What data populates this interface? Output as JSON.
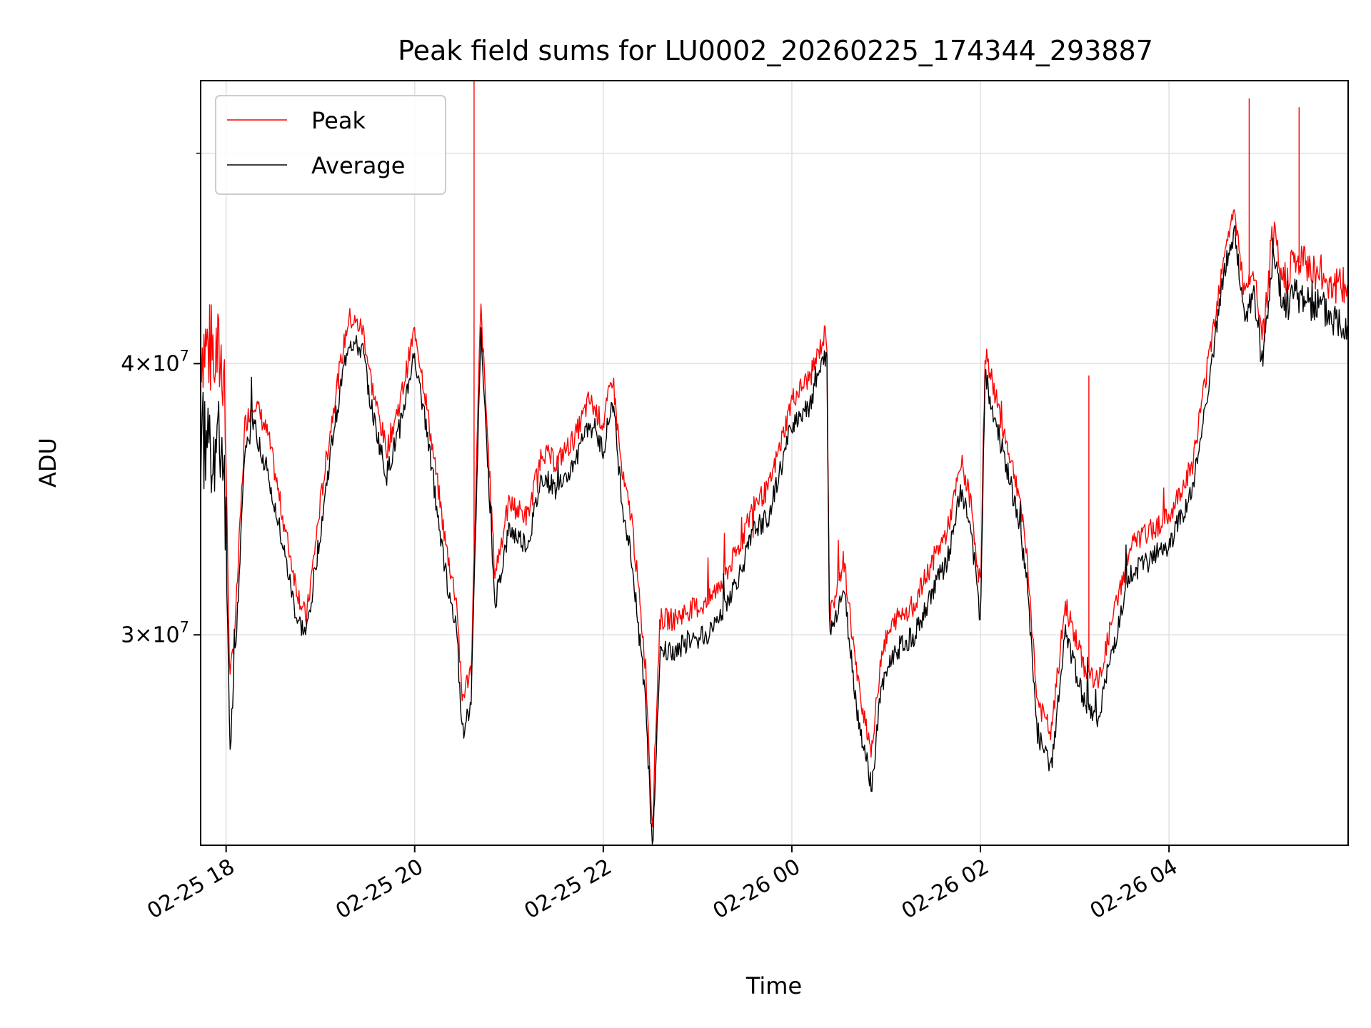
{
  "chart_data": {
    "type": "line",
    "title": "Peak field sums for LU0002_20260225_174344_293887",
    "xlabel": "Time",
    "ylabel": "ADU",
    "x_tick_labels": [
      "02-25 18",
      "02-25 20",
      "02-25 22",
      "02-26 00",
      "02-26 02",
      "02-26 04"
    ],
    "x_tick_hours": [
      18,
      20,
      22,
      24,
      26,
      28
    ],
    "xlim_hours": [
      17.73,
      29.9
    ],
    "y_scale": "log",
    "ylim": [
      24000000,
      54000000
    ],
    "y_ticks": [
      {
        "value": 30000000,
        "mantissa": "3",
        "exponent": "7"
      },
      {
        "value": 40000000,
        "mantissa": "4",
        "exponent": "7"
      }
    ],
    "y_minor_ticks": [
      50000000
    ],
    "grid": true,
    "legend_position": "upper-left",
    "series": [
      {
        "name": "Peak",
        "color": "#ff0000",
        "x_hours": [
          17.73,
          17.98,
          18.04,
          18.1,
          18.2,
          18.3,
          18.45,
          18.6,
          18.75,
          18.85,
          19.0,
          19.15,
          19.3,
          19.45,
          19.55,
          19.7,
          19.85,
          20.0,
          20.1,
          20.25,
          20.33,
          20.45,
          20.5,
          20.6,
          20.7,
          20.85,
          21.0,
          21.2,
          21.35,
          21.5,
          21.7,
          21.85,
          22.0,
          22.1,
          22.2,
          22.3,
          22.45,
          22.52,
          22.6,
          22.75,
          22.9,
          23.1,
          23.3,
          23.45,
          23.6,
          23.75,
          23.9,
          24.0,
          24.2,
          24.37,
          24.4,
          24.55,
          24.7,
          24.85,
          24.95,
          25.1,
          25.3,
          25.5,
          25.65,
          25.8,
          25.9,
          26.0,
          26.05,
          26.2,
          26.4,
          26.5,
          26.6,
          26.75,
          26.9,
          27.1,
          27.25,
          27.4,
          27.6,
          27.8,
          28.0,
          28.25,
          28.45,
          28.6,
          28.7,
          28.8,
          28.9,
          29.0,
          29.1,
          29.2,
          29.3,
          29.45,
          29.6,
          29.75,
          29.9
        ],
        "values": [
          41000000,
          40000000,
          28500000,
          30500000,
          37500000,
          38500000,
          37000000,
          34000000,
          31500000,
          30500000,
          34500000,
          38500000,
          42000000,
          41500000,
          39000000,
          36500000,
          38500000,
          41500000,
          39000000,
          35000000,
          33000000,
          31000000,
          28000000,
          29000000,
          42500000,
          32000000,
          34500000,
          34000000,
          36500000,
          36000000,
          37000000,
          38500000,
          37500000,
          39500000,
          35500000,
          34000000,
          29000000,
          24500000,
          30500000,
          30500000,
          30800000,
          31000000,
          32000000,
          33000000,
          34500000,
          35000000,
          37000000,
          38500000,
          39500000,
          41500000,
          30500000,
          32500000,
          28500000,
          26500000,
          29500000,
          30500000,
          31000000,
          32500000,
          33500000,
          36000000,
          34500000,
          31500000,
          40500000,
          38000000,
          35000000,
          32500000,
          28000000,
          27000000,
          31000000,
          29000000,
          28500000,
          30500000,
          33000000,
          33500000,
          34000000,
          36000000,
          41000000,
          45500000,
          47000000,
          43000000,
          44000000,
          41000000,
          46000000,
          43500000,
          44500000,
          44500000,
          44000000,
          43500000,
          43300000
        ],
        "spikes": [
          {
            "x_hour": 20.63,
            "value": 54000000
          },
          {
            "x_hour": 27.15,
            "value": 39500000
          },
          {
            "x_hour": 28.85,
            "value": 53000000
          },
          {
            "x_hour": 29.38,
            "value": 52500000
          }
        ]
      },
      {
        "name": "Average",
        "color": "#000000",
        "x_hours": [
          17.73,
          17.98,
          18.04,
          18.1,
          18.2,
          18.3,
          18.45,
          18.6,
          18.75,
          18.85,
          19.0,
          19.15,
          19.3,
          19.45,
          19.55,
          19.7,
          19.85,
          20.0,
          20.1,
          20.25,
          20.33,
          20.45,
          20.5,
          20.6,
          20.7,
          20.85,
          21.0,
          21.2,
          21.35,
          21.5,
          21.7,
          21.85,
          22.0,
          22.1,
          22.2,
          22.3,
          22.45,
          22.52,
          22.6,
          22.75,
          22.9,
          23.1,
          23.3,
          23.45,
          23.6,
          23.75,
          23.9,
          24.0,
          24.2,
          24.37,
          24.4,
          24.55,
          24.7,
          24.85,
          24.95,
          25.1,
          25.3,
          25.5,
          25.65,
          25.8,
          25.9,
          26.0,
          26.05,
          26.2,
          26.4,
          26.5,
          26.6,
          26.75,
          26.9,
          27.1,
          27.25,
          27.4,
          27.6,
          27.8,
          28.0,
          28.25,
          28.45,
          28.6,
          28.7,
          28.8,
          28.9,
          29.0,
          29.1,
          29.2,
          29.3,
          29.45,
          29.6,
          29.75,
          29.9
        ],
        "values": [
          37000000,
          36500000,
          26500000,
          29500000,
          36500000,
          37500000,
          35500000,
          33000000,
          30500000,
          30000000,
          33500000,
          37500000,
          41000000,
          40500000,
          38000000,
          35500000,
          37500000,
          40500000,
          38000000,
          34000000,
          32000000,
          30000000,
          27000000,
          28000000,
          41500000,
          31000000,
          33500000,
          33000000,
          35500000,
          35000000,
          36000000,
          37500000,
          36500000,
          38500000,
          34500000,
          32500000,
          28000000,
          23800000,
          29500000,
          29500000,
          29800000,
          30000000,
          31000000,
          32000000,
          33500000,
          34000000,
          36000000,
          37500000,
          38500000,
          40500000,
          30000000,
          31500000,
          27500000,
          25500000,
          28500000,
          29500000,
          30000000,
          31500000,
          32500000,
          35000000,
          33500000,
          30500000,
          39500000,
          37000000,
          34000000,
          31500000,
          27000000,
          26000000,
          30000000,
          28000000,
          27500000,
          29500000,
          32000000,
          32500000,
          33000000,
          35000000,
          40000000,
          44500000,
          46000000,
          42000000,
          43000000,
          40000000,
          45000000,
          42500000,
          43000000,
          43000000,
          42500000,
          42000000,
          41800000
        ]
      }
    ]
  }
}
